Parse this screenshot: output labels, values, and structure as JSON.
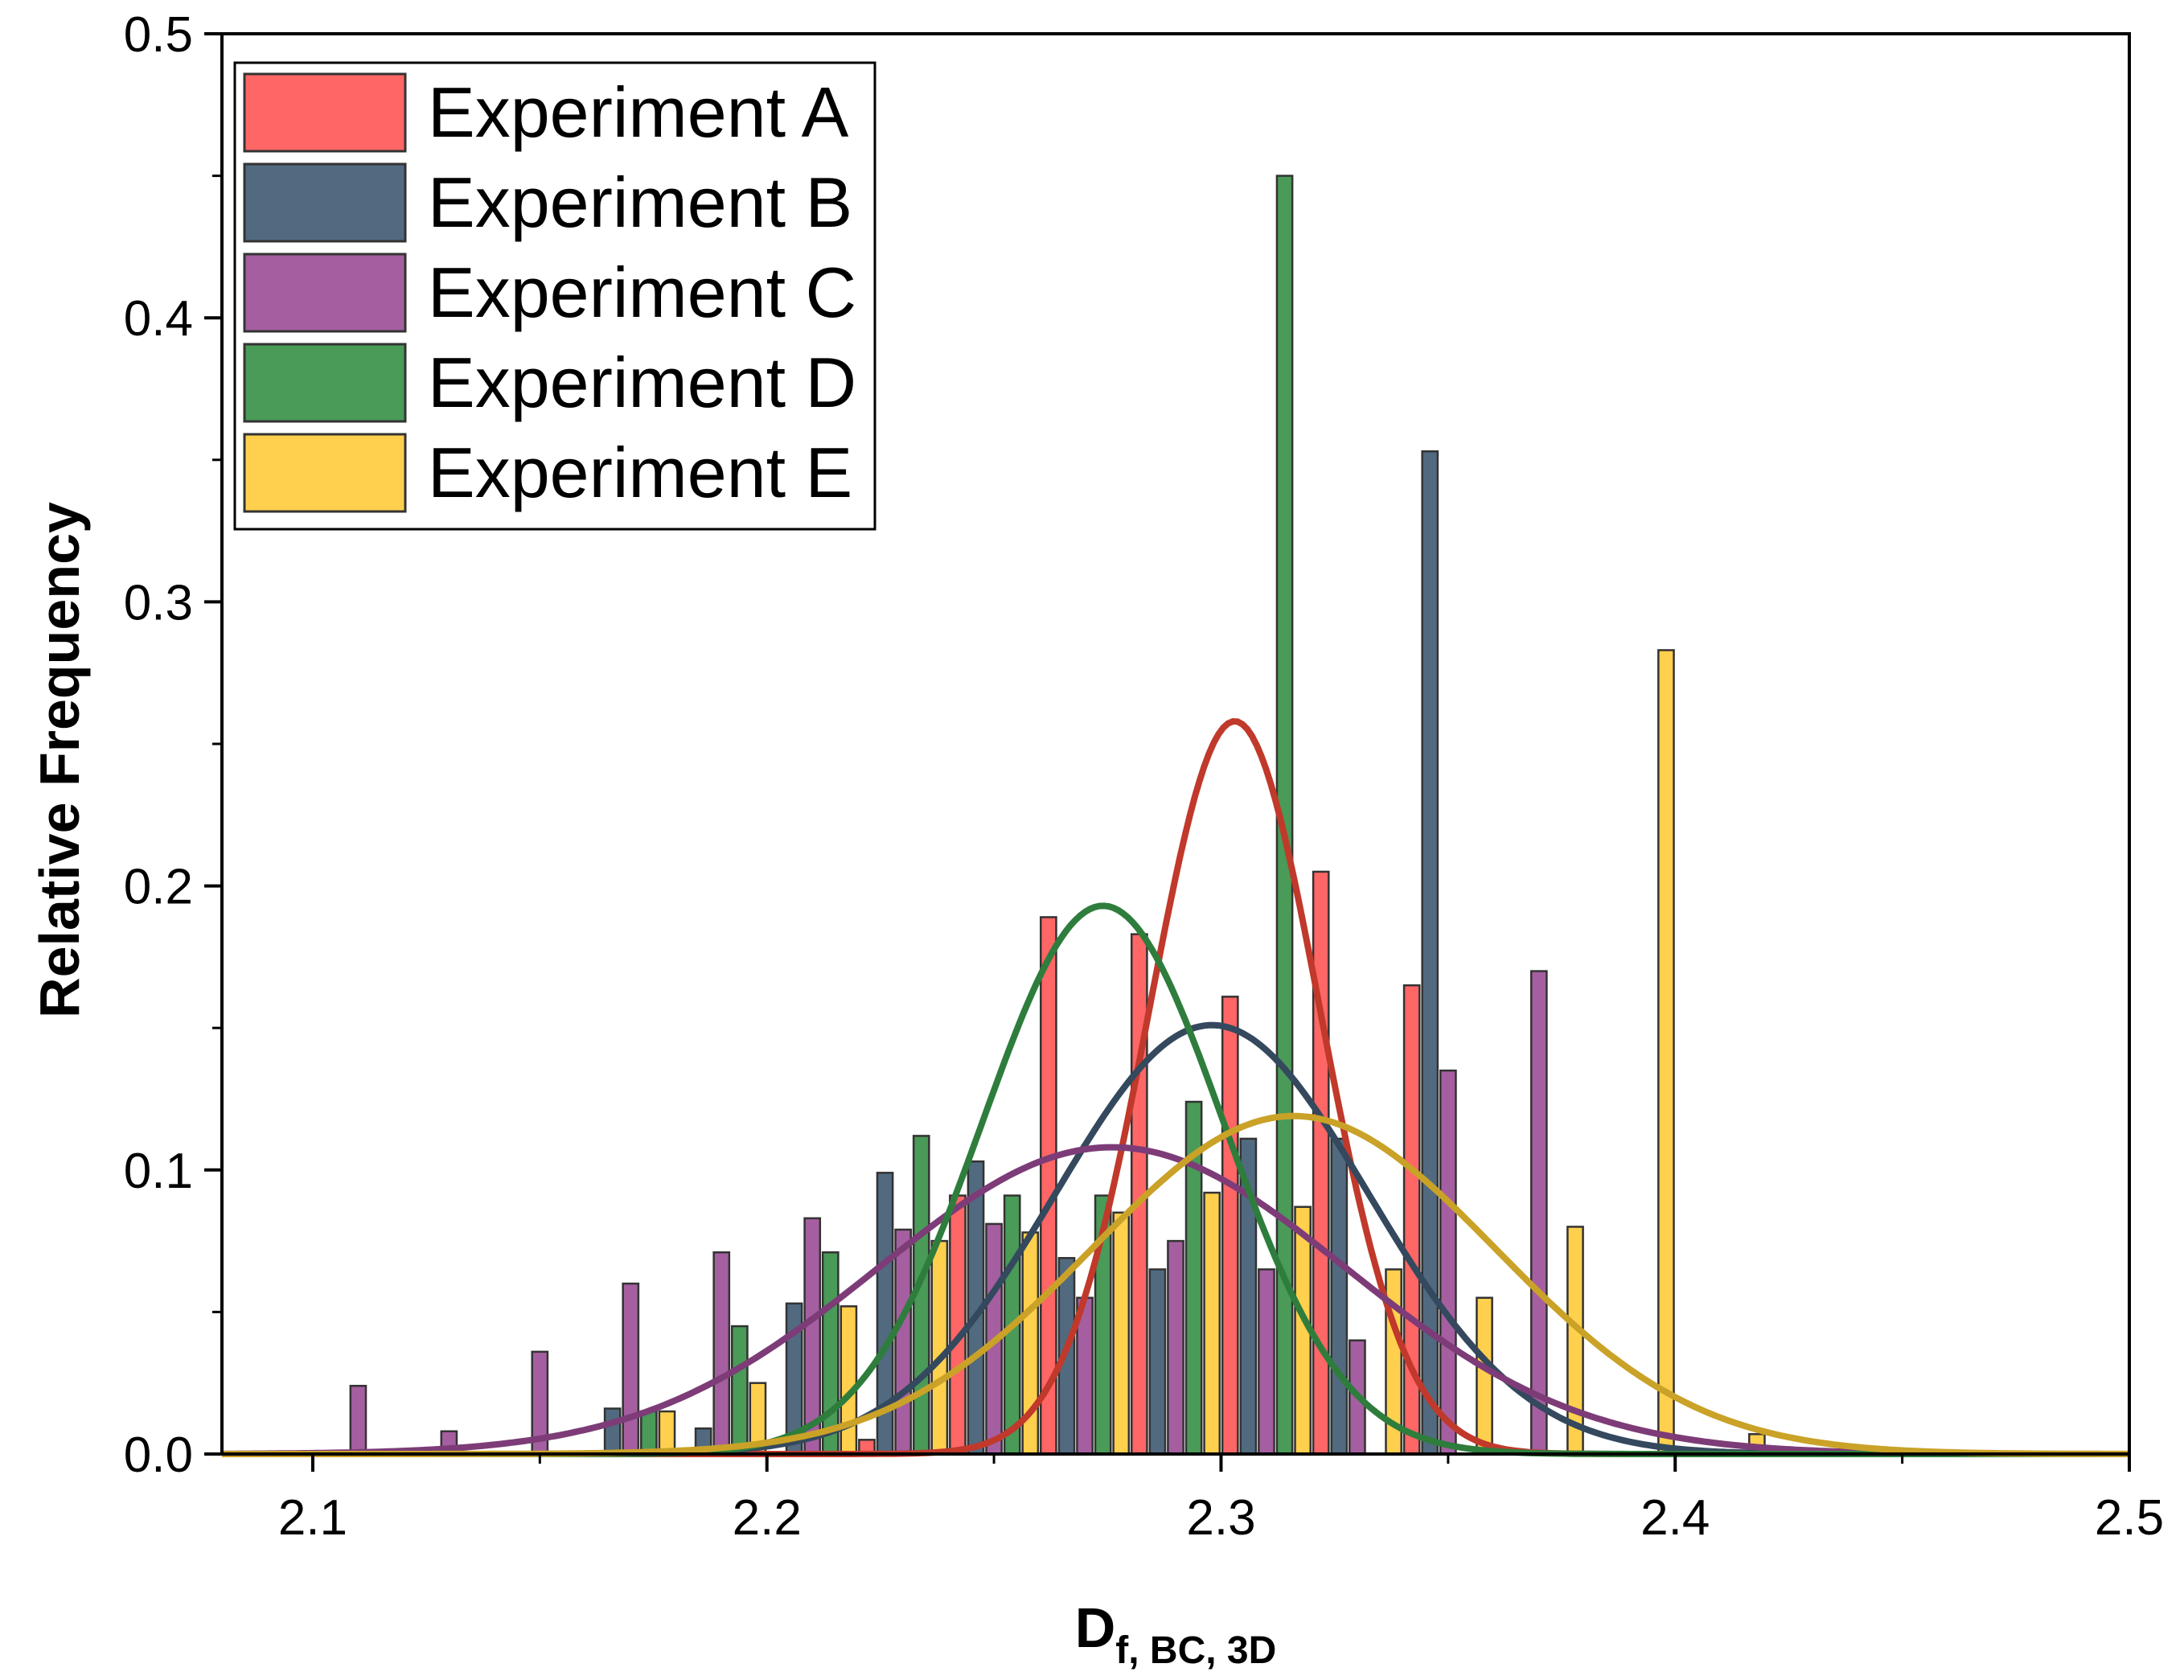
{
  "chart_data": {
    "type": "bar",
    "ylabel": "Relative Frequency",
    "xlabel": {
      "main": "D",
      "sub": "f, BC, 3D"
    },
    "xlim": [
      2.08,
      2.5
    ],
    "ylim": [
      0,
      0.5
    ],
    "x_ticks": [
      {
        "value": 2.1,
        "label": "2.1"
      },
      {
        "value": 2.2,
        "label": "2.2"
      },
      {
        "value": 2.3,
        "label": "2.3"
      },
      {
        "value": 2.4,
        "label": "2.4"
      },
      {
        "value": 2.5,
        "label": "2.5"
      }
    ],
    "y_ticks": [
      {
        "value": 0.0,
        "label": "0.0"
      },
      {
        "value": 0.1,
        "label": "0.1"
      },
      {
        "value": 0.2,
        "label": "0.2"
      },
      {
        "value": 0.3,
        "label": "0.3"
      },
      {
        "value": 0.4,
        "label": "0.4"
      },
      {
        "value": 0.5,
        "label": "0.5"
      }
    ],
    "legend_position": "top-left",
    "series": [
      {
        "name": "Experiment A",
        "color": "#FF6666",
        "curve_color": "#C0392B",
        "fit_mean": 2.303,
        "fit_sd": 0.0188,
        "fit_peak": 0.258,
        "bars": [
          [
            2.222,
            0.005
          ],
          [
            2.242,
            0.091
          ],
          [
            2.262,
            0.189
          ],
          [
            2.282,
            0.183
          ],
          [
            2.302,
            0.161
          ],
          [
            2.322,
            0.205
          ],
          [
            2.342,
            0.165
          ]
        ]
      },
      {
        "name": "Experiment B",
        "color": "#516A80",
        "curve_color": "#34495E",
        "fit_mean": 2.298,
        "fit_sd": 0.0345,
        "fit_peak": 0.151,
        "bars": [
          [
            2.166,
            0.016
          ],
          [
            2.186,
            0.009
          ],
          [
            2.206,
            0.053
          ],
          [
            2.226,
            0.099
          ],
          [
            2.246,
            0.103
          ],
          [
            2.266,
            0.069
          ],
          [
            2.286,
            0.065
          ],
          [
            2.306,
            0.111
          ],
          [
            2.326,
            0.111
          ],
          [
            2.346,
            0.353
          ]
        ]
      },
      {
        "name": "Experiment C",
        "color": "#A55FA0",
        "curve_color": "#7D3C78",
        "fit_mean": 2.276,
        "fit_sd": 0.0515,
        "fit_peak": 0.108,
        "bars": [
          [
            2.11,
            0.024
          ],
          [
            2.13,
            0.008
          ],
          [
            2.15,
            0.036
          ],
          [
            2.17,
            0.06
          ],
          [
            2.19,
            0.071
          ],
          [
            2.21,
            0.083
          ],
          [
            2.23,
            0.079
          ],
          [
            2.25,
            0.081
          ],
          [
            2.27,
            0.055
          ],
          [
            2.29,
            0.075
          ],
          [
            2.31,
            0.065
          ],
          [
            2.33,
            0.04
          ],
          [
            2.35,
            0.135
          ],
          [
            2.37,
            0.17
          ]
        ]
      },
      {
        "name": "Experiment D",
        "color": "#4A9A58",
        "curve_color": "#2E7D3C",
        "fit_mean": 2.274,
        "fit_sd": 0.0265,
        "fit_peak": 0.193,
        "bars": [
          [
            2.174,
            0.015
          ],
          [
            2.194,
            0.045
          ],
          [
            2.214,
            0.071
          ],
          [
            2.234,
            0.112
          ],
          [
            2.254,
            0.091
          ],
          [
            2.274,
            0.091
          ],
          [
            2.294,
            0.124
          ],
          [
            2.314,
            0.45
          ]
        ]
      },
      {
        "name": "Experiment E",
        "color": "#FFD04D",
        "curve_color": "#C9A227",
        "fit_mean": 2.316,
        "fit_sd": 0.0445,
        "fit_peak": 0.119,
        "bars": [
          [
            2.178,
            0.015
          ],
          [
            2.198,
            0.025
          ],
          [
            2.218,
            0.052
          ],
          [
            2.238,
            0.075
          ],
          [
            2.258,
            0.078
          ],
          [
            2.278,
            0.085
          ],
          [
            2.298,
            0.092
          ],
          [
            2.318,
            0.087
          ],
          [
            2.338,
            0.065
          ],
          [
            2.358,
            0.055
          ],
          [
            2.378,
            0.08
          ],
          [
            2.398,
            0.283
          ],
          [
            2.418,
            0.007
          ]
        ]
      }
    ]
  }
}
